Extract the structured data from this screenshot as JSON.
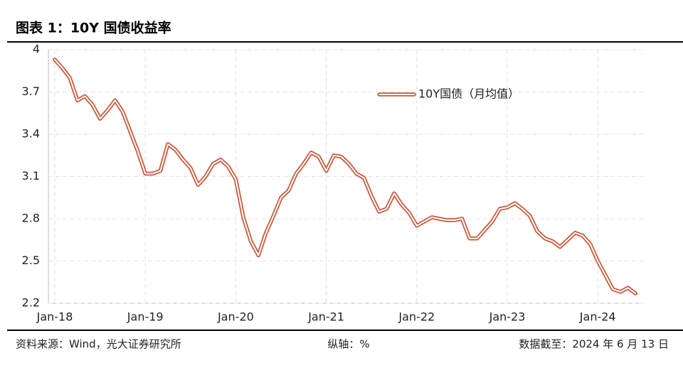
{
  "chart_data": {
    "type": "line",
    "title": "图表 1：10Y 国债收益率",
    "categories": [
      "Jan-18",
      null,
      null,
      null,
      null,
      null,
      null,
      null,
      null,
      null,
      null,
      null,
      "Jan-19",
      null,
      null,
      null,
      null,
      null,
      null,
      null,
      null,
      null,
      null,
      null,
      "Jan-20",
      null,
      null,
      null,
      null,
      null,
      null,
      null,
      null,
      null,
      null,
      null,
      "Jan-21",
      null,
      null,
      null,
      null,
      null,
      null,
      null,
      null,
      null,
      null,
      null,
      "Jan-22",
      null,
      null,
      null,
      null,
      null,
      null,
      null,
      null,
      null,
      null,
      null,
      "Jan-23",
      null,
      null,
      null,
      null,
      null,
      null,
      null,
      null,
      null,
      null,
      null,
      "Jan-24",
      null,
      null,
      null,
      null,
      null
    ],
    "series": [
      {
        "name": "10Y国债（月均值）",
        "color": "#c8583a",
        "values": [
          3.93,
          3.87,
          3.8,
          3.64,
          3.67,
          3.61,
          3.51,
          3.57,
          3.64,
          3.56,
          3.42,
          3.28,
          3.12,
          3.12,
          3.14,
          3.33,
          3.29,
          3.22,
          3.16,
          3.04,
          3.1,
          3.19,
          3.22,
          3.17,
          3.08,
          2.81,
          2.64,
          2.54,
          2.7,
          2.82,
          2.95,
          3.0,
          3.12,
          3.19,
          3.27,
          3.24,
          3.14,
          3.25,
          3.24,
          3.19,
          3.12,
          3.09,
          2.96,
          2.85,
          2.87,
          2.98,
          2.9,
          2.84,
          2.75,
          2.78,
          2.81,
          2.8,
          2.79,
          2.79,
          2.8,
          2.66,
          2.66,
          2.72,
          2.78,
          2.87,
          2.88,
          2.91,
          2.87,
          2.82,
          2.71,
          2.66,
          2.64,
          2.6,
          2.65,
          2.7,
          2.68,
          2.62,
          2.5,
          2.4,
          2.3,
          2.28,
          2.31,
          2.27
        ]
      }
    ],
    "ylim": [
      2.2,
      4
    ],
    "yticks": [
      2.2,
      2.5,
      2.8,
      3.1,
      3.4,
      3.7,
      4
    ],
    "grid": true,
    "source": "资料来源：Wind，光大证券研究所",
    "axis_note": "纵轴：%",
    "data_as_of": "数据截至：2024 年 6 月 13 日"
  }
}
